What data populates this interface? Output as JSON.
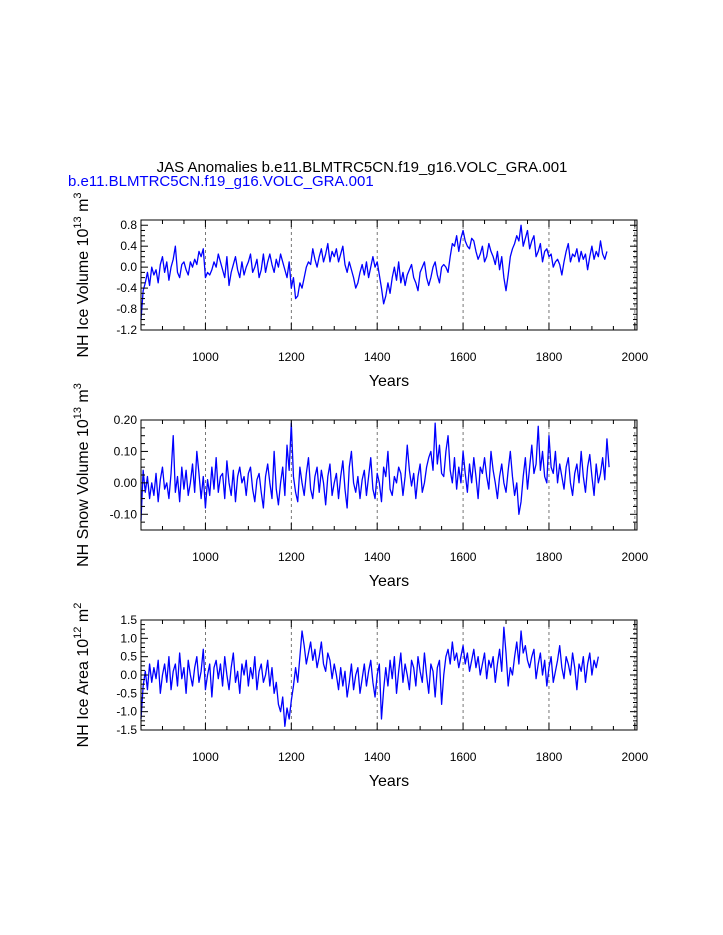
{
  "title": "JAS Anomalies b.e11.BLMTRC5CN.f19_g16.VOLC_GRA.001",
  "subtitle": "b.e11.BLMTRC5CN.f19_g16.VOLC_GRA.001",
  "colors": {
    "line": "#0000ff",
    "subtitle": "#0000ff",
    "axis": "#000000",
    "grid": "#555555"
  },
  "chart_data": [
    {
      "type": "line",
      "series_name": "b.e11.BLMTRC5CN.f19_g16.VOLC_GRA.001",
      "ylabel": "NH Ice Volume 10",
      "ylabel_exp": "13",
      "ylabel_unit": " m",
      "ylabel_unit_exp": "3",
      "xlabel": "Years",
      "xlim": [
        850,
        2005
      ],
      "ylim": [
        -1.2,
        0.9
      ],
      "yticks": [
        -1.2,
        -0.8,
        -0.4,
        0.0,
        0.4,
        0.8
      ],
      "ytick_labels": [
        "-1.2",
        "-0.8",
        "-0.4",
        "0.0",
        "0.4",
        "0.8"
      ],
      "xticks": [
        1000,
        1200,
        1400,
        1600,
        1800,
        2000
      ],
      "xtick_labels": [
        "1000",
        "1200",
        "1400",
        "1600",
        "1800",
        "2000"
      ],
      "grid_x": [
        1000,
        1200,
        1400,
        1600,
        1800,
        2000
      ],
      "x_start": 850,
      "x_end": 2005,
      "x_step": 5,
      "values": [
        -1.0,
        -0.45,
        -0.3,
        -0.1,
        -0.35,
        0.0,
        -0.15,
        -0.05,
        -0.3,
        0.05,
        0.2,
        -0.1,
        0.1,
        -0.25,
        0.0,
        0.15,
        0.4,
        -0.1,
        -0.2,
        0.05,
        0.1,
        -0.05,
        -0.15,
        0.1,
        0.0,
        0.15,
        0.05,
        0.3,
        0.2,
        0.35,
        -0.2,
        -0.1,
        -0.15,
        -0.05,
        0.1,
        0.0,
        0.25,
        0.1,
        -0.05,
        -0.2,
        0.2,
        -0.35,
        -0.1,
        0.05,
        0.2,
        -0.05,
        -0.2,
        0.1,
        -0.15,
        0.0,
        0.1,
        0.25,
        -0.1,
        0.0,
        0.15,
        -0.2,
        -0.05,
        0.25,
        -0.1,
        0.1,
        0.25,
        0.05,
        -0.1,
        0.15,
        0.0,
        0.25,
        0.1,
        -0.05,
        -0.2,
        0.1,
        -0.4,
        -0.2,
        -0.6,
        -0.55,
        -0.3,
        -0.4,
        -0.2,
        0.0,
        0.1,
        0.05,
        0.35,
        0.15,
        0.0,
        0.2,
        0.35,
        0.1,
        0.25,
        0.45,
        0.1,
        0.3,
        0.2,
        0.35,
        0.1,
        0.25,
        0.4,
        0.05,
        -0.1,
        0.1,
        -0.05,
        -0.2,
        -0.4,
        -0.3,
        -0.1,
        0.05,
        -0.15,
        0.1,
        -0.2,
        0.0,
        0.2,
        0.0,
        0.1,
        -0.15,
        -0.4,
        -0.7,
        -0.55,
        -0.3,
        -0.5,
        -0.2,
        0.0,
        -0.25,
        0.1,
        -0.3,
        -0.1,
        -0.35,
        -0.15,
        -0.05,
        0.05,
        -0.2,
        -0.3,
        -0.45,
        -0.1,
        0.0,
        0.1,
        -0.2,
        -0.35,
        -0.2,
        0.0,
        0.1,
        -0.15,
        -0.3,
        0.0,
        0.05,
        0.0,
        -0.1,
        0.2,
        0.45,
        0.4,
        0.6,
        0.3,
        0.55,
        0.7,
        0.5,
        0.4,
        0.35,
        0.55,
        0.5,
        0.3,
        0.15,
        0.25,
        0.4,
        0.1,
        0.2,
        0.45,
        0.3,
        0.2,
        0.05,
        0.3,
        -0.05,
        0.2,
        -0.2,
        -0.45,
        -0.15,
        0.2,
        0.35,
        0.45,
        0.6,
        0.5,
        0.8,
        0.4,
        0.55,
        0.7,
        0.35,
        0.5,
        0.6,
        0.2,
        0.3,
        0.45,
        0.1,
        0.3,
        0.35,
        0.2,
        0.25,
        0.0,
        0.1,
        0.15,
        0.05,
        -0.15,
        0.1,
        0.3,
        0.45,
        0.1,
        0.25,
        0.2,
        0.35,
        0.1,
        0.3,
        0.15,
        0.25,
        -0.05,
        0.2,
        0.4,
        0.15,
        0.3,
        0.2,
        0.5,
        0.25,
        0.15,
        0.3
      ]
    },
    {
      "type": "line",
      "series_name": "b.e11.BLMTRC5CN.f19_g16.VOLC_GRA.001",
      "ylabel": "NH Snow Volume 10",
      "ylabel_exp": "13",
      "ylabel_unit": " m",
      "ylabel_unit_exp": "3",
      "xlabel": "Years",
      "xlim": [
        850,
        2005
      ],
      "ylim": [
        -0.15,
        0.2
      ],
      "yticks": [
        -0.1,
        0.0,
        0.1,
        0.2
      ],
      "ytick_labels": [
        "-0.10",
        "0.00",
        "0.10",
        "0.20"
      ],
      "xticks": [
        1000,
        1200,
        1400,
        1600,
        1800,
        2000
      ],
      "xtick_labels": [
        "1000",
        "1200",
        "1400",
        "1600",
        "1800",
        "2000"
      ],
      "grid_x": [
        1000,
        1200,
        1400,
        1600,
        1800,
        2000
      ],
      "x_start": 850,
      "x_end": 2005,
      "x_step": 5,
      "values": [
        -0.12,
        0.04,
        -0.03,
        0.02,
        -0.05,
        0.0,
        -0.04,
        0.03,
        -0.06,
        0.01,
        0.05,
        -0.02,
        0.0,
        -0.05,
        0.03,
        0.15,
        -0.03,
        0.02,
        -0.06,
        0.05,
        -0.02,
        0.04,
        -0.04,
        0.0,
        0.06,
        -0.03,
        0.1,
        0.03,
        -0.05,
        0.02,
        -0.08,
        0.01,
        -0.04,
        0.05,
        -0.02,
        0.08,
        -0.03,
        0.02,
        0.03,
        -0.05,
        0.07,
        0.0,
        -0.04,
        0.04,
        -0.06,
        0.02,
        0.05,
        0.0,
        0.02,
        -0.04,
        0.03,
        0.05,
        -0.02,
        -0.06,
        0.01,
        0.03,
        -0.03,
        -0.08,
        0.02,
        0.06,
        0.0,
        -0.05,
        0.1,
        -0.02,
        -0.07,
        0.0,
        0.05,
        -0.04,
        0.12,
        0.04,
        0.19,
        0.02,
        -0.03,
        -0.06,
        0.05,
        0.0,
        -0.04,
        0.03,
        0.08,
        -0.02,
        -0.05,
        0.02,
        0.05,
        -0.03,
        0.04,
        0.0,
        -0.07,
        0.02,
        0.06,
        -0.04,
        0.0,
        0.03,
        -0.05,
        0.02,
        0.07,
        -0.02,
        -0.08,
        0.05,
        0.1,
        0.0,
        -0.03,
        0.02,
        -0.05,
        0.01,
        0.04,
        -0.04,
        0.02,
        0.08,
        -0.02,
        -0.05,
        0.03,
        0.0,
        -0.06,
        0.05,
        0.02,
        0.1,
        -0.02,
        -0.04,
        0.02,
        0.0,
        0.05,
        0.03,
        -0.04,
        0.02,
        0.12,
        0.04,
        -0.01,
        0.03,
        -0.05,
        0.02,
        0.06,
        -0.03,
        0.0,
        0.05,
        0.08,
        0.1,
        0.04,
        0.19,
        0.06,
        0.12,
        0.03,
        0.02,
        0.1,
        0.15,
        0.04,
        0.0,
        0.08,
        -0.02,
        0.05,
        0.0,
        0.1,
        0.03,
        -0.03,
        0.06,
        0.0,
        0.08,
        0.02,
        -0.05,
        0.05,
        0.03,
        0.08,
        0.02,
        -0.02,
        0.1,
        0.04,
        0.0,
        -0.05,
        0.02,
        0.06,
        0.0,
        -0.03,
        0.04,
        0.1,
        0.02,
        -0.04,
        0.0,
        -0.1,
        -0.06,
        0.02,
        0.08,
        -0.02,
        0.05,
        0.12,
        0.03,
        0.06,
        0.18,
        0.04,
        0.1,
        0.02,
        0.0,
        0.15,
        0.05,
        0.03,
        0.1,
        0.0,
        0.06,
        0.02,
        -0.02,
        0.05,
        0.08,
        0.0,
        -0.04,
        0.03,
        0.06,
        0.0,
        0.1,
        0.02,
        -0.03,
        0.05,
        0.09,
        0.02,
        -0.04,
        0.06,
        0.0,
        0.03,
        0.08,
        0.01,
        0.14,
        0.05
      ]
    },
    {
      "type": "line",
      "series_name": "b.e11.BLMTRC5CN.f19_g16.VOLC_GRA.001",
      "ylabel": "NH Ice Area 10",
      "ylabel_exp": "12",
      "ylabel_unit": " m",
      "ylabel_unit_exp": "2",
      "xlabel": "Years",
      "xlim": [
        850,
        2005
      ],
      "ylim": [
        -1.5,
        1.5
      ],
      "yticks": [
        -1.5,
        -1.0,
        -0.5,
        0.0,
        0.5,
        1.0,
        1.5
      ],
      "ytick_labels": [
        "-1.5",
        "-1.0",
        "-0.5",
        "0.0",
        "0.5",
        "1.0",
        "1.5"
      ],
      "xticks": [
        1000,
        1200,
        1400,
        1600,
        1800,
        2000
      ],
      "xtick_labels": [
        "1000",
        "1200",
        "1400",
        "1600",
        "1800",
        "2000"
      ],
      "grid_x": [
        1000,
        1200,
        1400,
        1600,
        1800,
        2000
      ],
      "x_start": 850,
      "x_end": 2005,
      "x_step": 5,
      "values": [
        -1.2,
        -0.3,
        0.1,
        -0.4,
        0.3,
        -0.2,
        0.2,
        -0.1,
        0.4,
        -0.5,
        0.0,
        0.3,
        -0.2,
        0.5,
        -0.4,
        0.1,
        0.3,
        -0.3,
        0.6,
        -0.1,
        0.2,
        -0.5,
        0.4,
        0.0,
        -0.3,
        0.2,
        0.5,
        -0.2,
        0.1,
        0.7,
        -0.4,
        0.0,
        0.3,
        -0.6,
        0.2,
        0.4,
        -0.1,
        0.3,
        -0.3,
        0.5,
        0.0,
        -0.4,
        0.2,
        0.6,
        -0.2,
        0.1,
        -0.5,
        0.3,
        0.0,
        0.4,
        -0.3,
        0.2,
        -0.1,
        0.5,
        -0.4,
        0.1,
        0.3,
        -0.2,
        0.0,
        0.4,
        -0.3,
        0.2,
        -0.5,
        -0.2,
        -0.8,
        -1.0,
        -0.6,
        -1.4,
        -0.9,
        -1.2,
        -0.7,
        -0.3,
        0.2,
        -0.2,
        0.5,
        1.2,
        0.8,
        0.3,
        0.6,
        0.9,
        0.4,
        0.7,
        0.2,
        0.5,
        0.9,
        0.3,
        0.1,
        0.6,
        0.4,
        -0.1,
        0.3,
        0.0,
        -0.4,
        0.2,
        -0.3,
        0.1,
        -0.6,
        -0.2,
        0.3,
        -0.4,
        0.0,
        0.2,
        -0.5,
        -0.1,
        0.3,
        -0.3,
        0.1,
        0.4,
        -0.2,
        -0.6,
        0.0,
        0.3,
        -1.2,
        -0.4,
        0.2,
        -0.3,
        0.4,
        -0.1,
        0.5,
        -0.5,
        0.1,
        0.6,
        -0.2,
        0.3,
        0.0,
        -0.4,
        0.4,
        0.2,
        -0.3,
        0.5,
        0.1,
        -0.2,
        0.6,
        0.0,
        -0.5,
        0.3,
        0.1,
        -0.6,
        0.2,
        0.4,
        -0.8,
        0.0,
        0.5,
        0.7,
        0.3,
        0.9,
        0.4,
        0.6,
        0.2,
        0.5,
        0.8,
        0.3,
        0.6,
        0.1,
        0.4,
        0.7,
        0.2,
        0.5,
        0.0,
        0.3,
        0.6,
        -0.1,
        0.4,
        0.2,
        0.5,
        -0.2,
        0.3,
        0.7,
        0.1,
        1.3,
        0.6,
        -0.3,
        0.2,
        0.0,
        0.5,
        0.9,
        0.3,
        1.2,
        0.6,
        0.8,
        0.4,
        0.2,
        0.5,
        0.7,
        -0.1,
        0.3,
        0.6,
        0.0,
        0.4,
        -0.3,
        0.2,
        0.5,
        -0.2,
        0.1,
        0.4,
        0.8,
        0.2,
        -0.1,
        0.5,
        0.3,
        0.0,
        0.6,
        0.2,
        -0.4,
        0.3,
        0.1,
        0.5,
        -0.2,
        0.3,
        0.6,
        0.0,
        0.4,
        0.2,
        0.5
      ]
    }
  ]
}
